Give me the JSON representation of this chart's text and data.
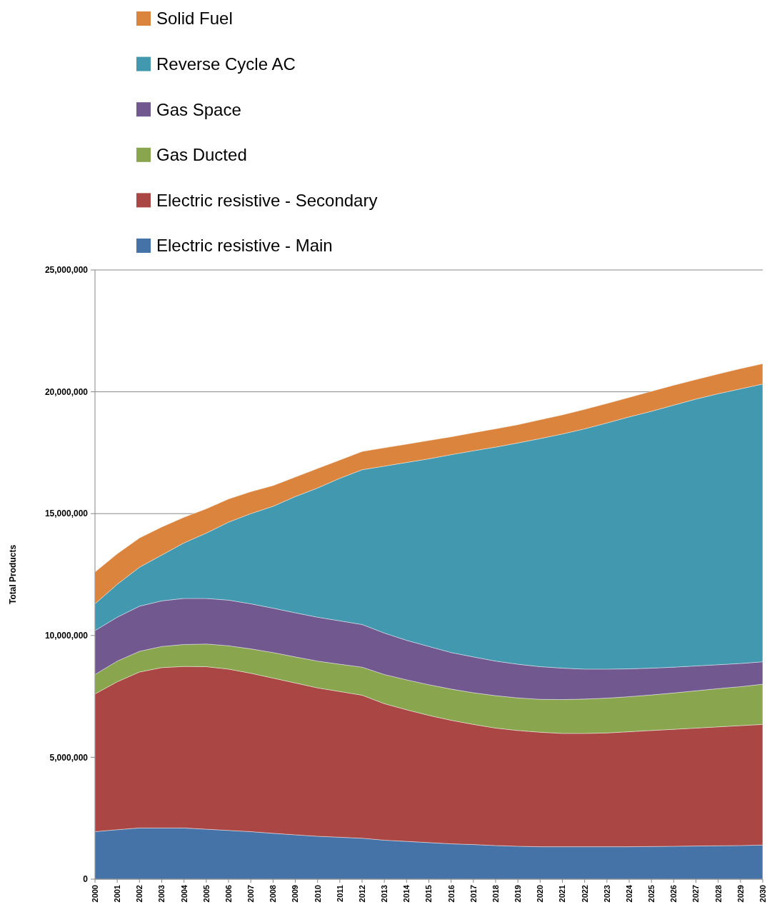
{
  "chart_data": {
    "type": "area",
    "stacked": true,
    "ylabel": "Total Products",
    "legend": "top left",
    "grid": "y",
    "x": [
      2000,
      2001,
      2002,
      2003,
      2004,
      2005,
      2006,
      2007,
      2008,
      2009,
      2010,
      2011,
      2012,
      2013,
      2014,
      2015,
      2016,
      2017,
      2018,
      2019,
      2020,
      2021,
      2022,
      2023,
      2024,
      2025,
      2026,
      2027,
      2028,
      2029,
      2030
    ],
    "xlim": [
      2000,
      2030
    ],
    "xticks": [
      2000,
      2001,
      2002,
      2003,
      2004,
      2005,
      2006,
      2007,
      2008,
      2009,
      2010,
      2011,
      2012,
      2013,
      2014,
      2015,
      2016,
      2017,
      2018,
      2019,
      2020,
      2021,
      2022,
      2023,
      2024,
      2025,
      2026,
      2027,
      2028,
      2029,
      2030
    ],
    "ylim": [
      0,
      25000000
    ],
    "yticks": [
      {
        "value": 0,
        "label": "0"
      },
      {
        "value": 5000000,
        "label": "5,000,000"
      },
      {
        "value": 10000000,
        "label": "10,000,000"
      },
      {
        "value": 15000000,
        "label": "15,000,000"
      },
      {
        "value": 20000000,
        "label": "20,000,000"
      },
      {
        "value": 25000000,
        "label": "25,000,000"
      }
    ],
    "series": [
      {
        "name": "Electric resistive - Main",
        "color": "#4572a7",
        "values": [
          1950000,
          2030000,
          2100000,
          2100000,
          2100000,
          2050000,
          2000000,
          1950000,
          1880000,
          1820000,
          1760000,
          1720000,
          1680000,
          1600000,
          1550000,
          1500000,
          1450000,
          1420000,
          1380000,
          1350000,
          1330000,
          1330000,
          1330000,
          1330000,
          1330000,
          1340000,
          1350000,
          1360000,
          1370000,
          1380000,
          1400000
        ]
      },
      {
        "name": "Electric resistive - Secondary",
        "color": "#aa4643",
        "values": [
          5650000,
          6070000,
          6400000,
          6580000,
          6630000,
          6670000,
          6620000,
          6500000,
          6370000,
          6230000,
          6090000,
          5980000,
          5870000,
          5600000,
          5400000,
          5220000,
          5070000,
          4930000,
          4820000,
          4750000,
          4700000,
          4650000,
          4650000,
          4670000,
          4720000,
          4760000,
          4800000,
          4840000,
          4880000,
          4920000,
          4950000
        ]
      },
      {
        "name": "Gas Ducted",
        "color": "#89a54e",
        "values": [
          800000,
          850000,
          850000,
          870000,
          900000,
          930000,
          960000,
          1000000,
          1050000,
          1070000,
          1100000,
          1120000,
          1150000,
          1200000,
          1230000,
          1260000,
          1280000,
          1300000,
          1330000,
          1340000,
          1350000,
          1390000,
          1410000,
          1430000,
          1440000,
          1460000,
          1490000,
          1530000,
          1570000,
          1600000,
          1650000
        ]
      },
      {
        "name": "Gas Space",
        "color": "#71588f",
        "values": [
          1800000,
          1800000,
          1850000,
          1870000,
          1890000,
          1870000,
          1870000,
          1850000,
          1820000,
          1810000,
          1800000,
          1780000,
          1750000,
          1700000,
          1620000,
          1570000,
          1500000,
          1470000,
          1420000,
          1380000,
          1340000,
          1290000,
          1230000,
          1190000,
          1140000,
          1100000,
          1060000,
          1020000,
          980000,
          950000,
          920000
        ]
      },
      {
        "name": "Reverse Cycle AC",
        "color": "#4198af",
        "values": [
          1100000,
          1350000,
          1600000,
          1880000,
          2280000,
          2680000,
          3200000,
          3700000,
          4180000,
          4770000,
          5300000,
          5850000,
          6350000,
          6850000,
          7300000,
          7700000,
          8120000,
          8460000,
          8780000,
          9080000,
          9360000,
          9610000,
          9860000,
          10100000,
          10340000,
          10540000,
          10750000,
          10950000,
          11120000,
          11270000,
          11400000
        ]
      },
      {
        "name": "Solid Fuel",
        "color": "#db843d",
        "values": [
          1300000,
          1250000,
          1200000,
          1150000,
          1050000,
          1000000,
          950000,
          900000,
          850000,
          800000,
          800000,
          750000,
          750000,
          750000,
          750000,
          750000,
          730000,
          740000,
          750000,
          750000,
          770000,
          780000,
          800000,
          800000,
          800000,
          820000,
          820000,
          800000,
          810000,
          830000,
          830000
        ]
      }
    ]
  }
}
